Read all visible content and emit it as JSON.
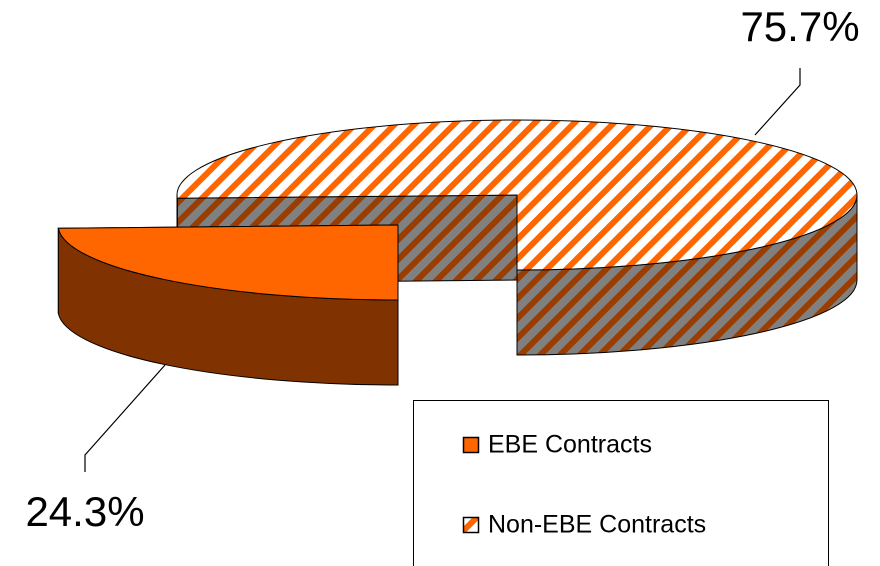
{
  "chart_data": {
    "type": "pie3d",
    "categories": [
      "EBE Contracts",
      "Non-EBE Contracts"
    ],
    "values": [
      24.3,
      75.7
    ],
    "value_labels": [
      "24.3%",
      "75.7%"
    ],
    "colors": [
      "#ff6600",
      "#ff6600"
    ],
    "hatch": [
      false,
      true
    ]
  }
}
